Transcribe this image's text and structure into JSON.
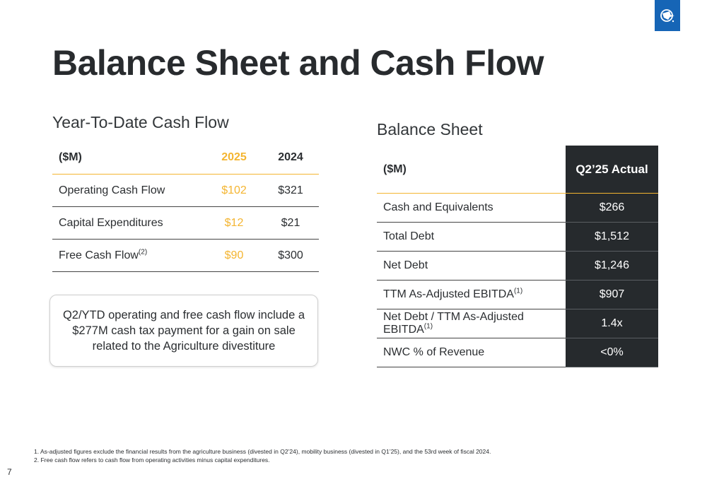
{
  "header": {
    "title": "Balance Sheet and Cash Flow",
    "logo_icon": "company-logo-icon",
    "logo_color": "#1665b6"
  },
  "cash_flow": {
    "title": "Year-To-Date Cash Flow",
    "headers": [
      "($M)",
      "2025",
      "2024"
    ],
    "rows": [
      {
        "label": "Operating Cash Flow",
        "sup": "",
        "v2025": "$102",
        "v2024": "$321"
      },
      {
        "label": "Capital Expenditures",
        "sup": "",
        "v2025": "$12",
        "v2024": "$21"
      },
      {
        "label": "Free Cash Flow",
        "sup": "(2)",
        "v2025": "$90",
        "v2024": "$300"
      }
    ],
    "highlight_color": "#f4b531"
  },
  "callout": {
    "text": "Q2/YTD operating and free cash flow include a $277M cash tax payment for a gain on sale related to the Agriculture divestiture"
  },
  "balance_sheet": {
    "title": "Balance Sheet",
    "headers": [
      "($M)",
      "Q2’25 Actual"
    ],
    "rows": [
      {
        "label": "Cash and Equivalents",
        "sup": "",
        "value": "$266"
      },
      {
        "label": "Total Debt",
        "sup": "",
        "value": "$1,512"
      },
      {
        "label": "Net Debt",
        "sup": "",
        "value": "$1,246"
      },
      {
        "label": "TTM As-Adjusted EBITDA",
        "sup": "(1)",
        "value": "$907"
      },
      {
        "label": "Net Debt / TTM As-Adjusted EBITDA",
        "sup": "(1)",
        "value": "1.4x"
      },
      {
        "label": "NWC % of Revenue",
        "sup": "",
        "value": "<0%"
      }
    ],
    "dark_column_color": "#262a2d"
  },
  "footnotes": [
    "1.  As-adjusted figures exclude the financial results from the agriculture business (divested in Q2’24), mobility business (divested in Q1’25), and the 53rd week of fiscal 2024.",
    "2.  Free cash flow refers to cash flow from operating activities minus capital expenditures."
  ],
  "page_number": "7"
}
